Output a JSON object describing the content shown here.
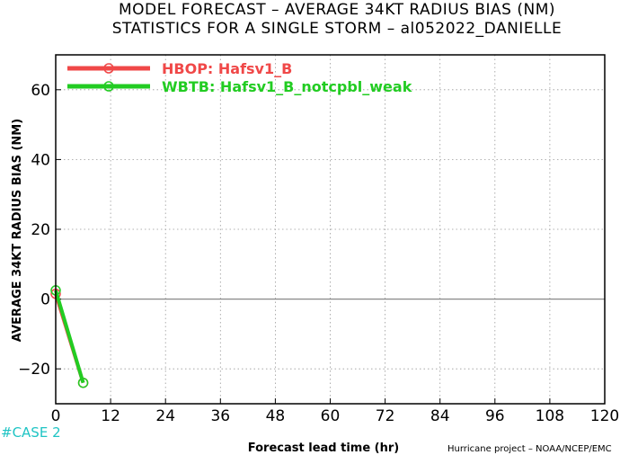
{
  "title_line1": "MODEL FORECAST – AVERAGE 34KT RADIUS BIAS (NM)",
  "title_line2": "STATISTICS FOR A SINGLE STORM – al052022_DANIELLE",
  "case_label": "#CASE  2",
  "credit": "Hurricane project – NOAA/NCEP/EMC",
  "chart_data": {
    "type": "line",
    "xlabel": "Forecast lead time (hr)",
    "ylabel": "AVERAGE 34KT RADIUS BIAS (NM)",
    "xlim": [
      0,
      120
    ],
    "ylim": [
      -30,
      70
    ],
    "x_ticks": [
      0,
      12,
      24,
      36,
      48,
      60,
      72,
      84,
      96,
      108,
      120
    ],
    "y_ticks": [
      -20,
      0,
      20,
      40,
      60
    ],
    "grid": true,
    "legend_position": "top-left",
    "series": [
      {
        "name": "HBOP: Hafsv1_B",
        "color": "#f04848",
        "x": [
          0,
          6
        ],
        "y": [
          1.5,
          -24
        ]
      },
      {
        "name": "WBTB: Hafsv1_B_notcpbl_weak",
        "color": "#22cc22",
        "x": [
          0,
          6
        ],
        "y": [
          2.5,
          -24
        ]
      }
    ]
  }
}
